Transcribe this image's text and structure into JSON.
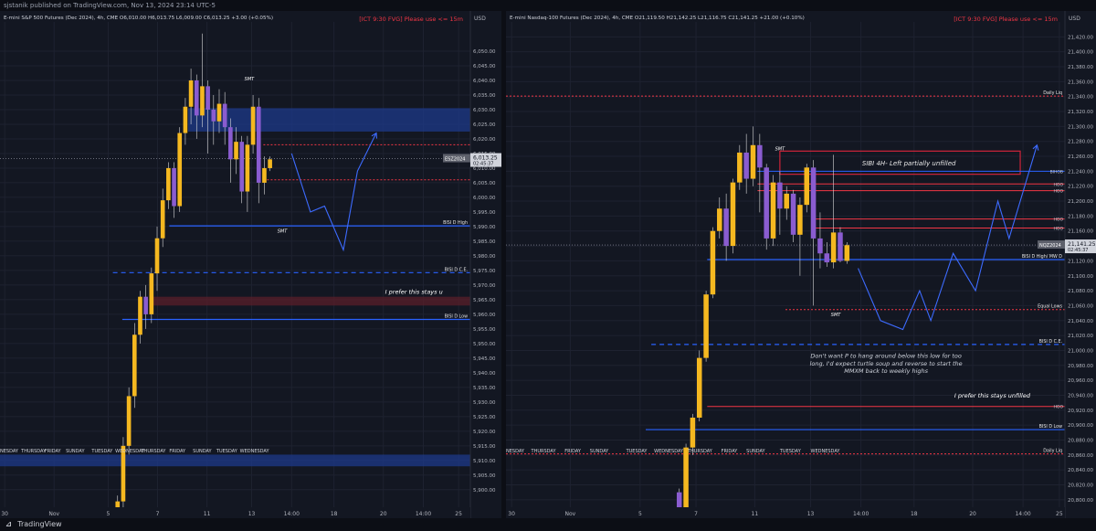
{
  "header": {
    "publisher_text": "sjstanik published on TradingView.com, Nov 13, 2024 23:14 UTC-5"
  },
  "footer": {
    "brand": "TradingView"
  },
  "colors": {
    "background": "#131722",
    "grid": "#1e2230",
    "candle_up": "#f5b820",
    "candle_down": "#8a5cd0",
    "blue_level": "#2962ff",
    "red_level": "#f23645",
    "annotation_blue": "#3d6bff",
    "fvg_blue": "#1e3a8a"
  },
  "chart_data": [
    {
      "type": "candlestick",
      "symbol_header": "E-mini S&P 500 Futures (Dec 2024), 4h, CME",
      "ohlc": {
        "o": "6,010.00",
        "h": "6,013.75",
        "l": "6,009.00",
        "c": "6,013.25",
        "chg": "+3.00 (+0.05%)"
      },
      "note_box": "[ICT 9:30 FVG] Please use <= 15m",
      "currency": "USD",
      "price_range": [
        5894,
        6060
      ],
      "y_ticks": [
        "6,050.00",
        "6,045.00",
        "6,040.00",
        "6,035.00",
        "6,030.00",
        "6,025.00",
        "6,020.00",
        "6,015.00",
        "6,010.00",
        "6,005.00",
        "6,000.00",
        "5,995.00",
        "5,990.00",
        "5,985.00",
        "5,980.00",
        "5,975.00",
        "5,970.00",
        "5,965.00",
        "5,960.00",
        "5,955.00",
        "5,950.00",
        "5,945.00",
        "5,940.00",
        "5,935.00",
        "5,930.00",
        "5,925.00",
        "5,920.00",
        "5,915.00",
        "5,910.00",
        "5,905.00",
        "5,900.00"
      ],
      "y_tick_values": [
        6050,
        6045,
        6040,
        6035,
        6030,
        6025,
        6020,
        6015,
        6010,
        6005,
        6000,
        5995,
        5990,
        5985,
        5980,
        5975,
        5970,
        5965,
        5960,
        5955,
        5950,
        5945,
        5940,
        5935,
        5930,
        5925,
        5920,
        5915,
        5910,
        5905,
        5900
      ],
      "x_ticks": [
        "30",
        "Nov",
        "5",
        "7",
        "11",
        "13",
        "14:00",
        "18",
        "20",
        "14:00",
        "25"
      ],
      "x_tick_pos": [
        0.01,
        0.115,
        0.23,
        0.335,
        0.44,
        0.535,
        0.62,
        0.71,
        0.815,
        0.9,
        0.975
      ],
      "day_labels": [
        "NESDAY",
        "THURSDAY",
        "FRIDAY",
        "SUNDAY",
        "TUESDAY",
        "WEDNESDAY",
        "THURSDAY",
        "FRIDAY",
        "SUNDAY",
        "TUESDAY",
        "WEDNESDAY"
      ],
      "day_label_pos": [
        0.0,
        0.045,
        0.095,
        0.14,
        0.195,
        0.245,
        0.3,
        0.36,
        0.41,
        0.46,
        0.51
      ],
      "current_price": {
        "symbol": "ESZ2024",
        "price": "6,013.25",
        "timer": "02:45:37",
        "value": 6013.25
      },
      "levels": [
        {
          "price": 5990.25,
          "price_label": "5,990.25",
          "text": "BISI D High",
          "style": "solid",
          "color": "#2962ff",
          "x0": 0.36,
          "x1": 1.0
        },
        {
          "price": 5974.25,
          "price_label": "5,974.25",
          "text": "BISI D C.E.",
          "style": "dashed",
          "color": "#2962ff",
          "x0": 0.24,
          "x1": 1.0
        },
        {
          "price": 5958.25,
          "price_label": "5,958.25",
          "text": "BISI D Low",
          "style": "solid",
          "color": "#2962ff",
          "x0": 0.26,
          "x1": 1.0
        }
      ],
      "zones": [
        {
          "top": 6030.5,
          "bottom": 6022.5,
          "color": "#1e3a8a",
          "x0": 0.4,
          "x1": 1.0
        },
        {
          "top": 5966,
          "bottom": 5963,
          "color": "#5a1f2a",
          "x0": 0.32,
          "x1": 1.0
        },
        {
          "top": 5912,
          "bottom": 5908,
          "color": "#1e3a8a",
          "x0": 0.0,
          "x1": 1.0
        }
      ],
      "red_lines": [
        {
          "price": 6018,
          "x0": 0.56,
          "x1": 1.0
        },
        {
          "price": 6006,
          "x0": 0.56,
          "x1": 1.0
        }
      ],
      "annotations": [
        {
          "text": "SMT",
          "x": 0.53,
          "price": 6040,
          "color": "#ffffff"
        },
        {
          "text": "SMT",
          "x": 0.6,
          "price": 5988,
          "color": "#ffffff"
        },
        {
          "text": "I prefer this stays u",
          "x": 0.88,
          "price": 5967,
          "color": "#ffffff"
        }
      ],
      "projection": [
        [
          0.62,
          6015
        ],
        [
          0.66,
          5995
        ],
        [
          0.69,
          5997
        ],
        [
          0.73,
          5982
        ],
        [
          0.76,
          6009
        ],
        [
          0.8,
          6022
        ]
      ],
      "candles": [
        [
          0.25,
          5893,
          5896,
          5890,
          5898
        ],
        [
          0.262,
          5896,
          5915,
          5894,
          5918
        ],
        [
          0.274,
          5915,
          5932,
          5912,
          5935
        ],
        [
          0.286,
          5932,
          5953,
          5928,
          5957
        ],
        [
          0.298,
          5953,
          5966,
          5950,
          5968
        ],
        [
          0.31,
          5966,
          5960,
          5955,
          5970
        ],
        [
          0.322,
          5960,
          5974,
          5957,
          5976
        ],
        [
          0.334,
          5974,
          5986,
          5968,
          5990
        ],
        [
          0.346,
          5986,
          5999,
          5983,
          6003
        ],
        [
          0.358,
          5999,
          6010,
          5996,
          6012
        ],
        [
          0.37,
          6010,
          5997,
          5993,
          6012
        ],
        [
          0.382,
          5997,
          6022,
          5995,
          6024
        ],
        [
          0.394,
          6022,
          6031,
          6018,
          6034
        ],
        [
          0.406,
          6031,
          6040,
          6025,
          6044
        ],
        [
          0.418,
          6040,
          6028,
          6020,
          6042
        ],
        [
          0.43,
          6028,
          6038,
          6024,
          6056
        ],
        [
          0.442,
          6038,
          6030,
          6015,
          6040
        ],
        [
          0.454,
          6030,
          6026,
          6018,
          6035
        ],
        [
          0.466,
          6026,
          6032,
          6022,
          6037
        ],
        [
          0.478,
          6032,
          6024,
          6018,
          6036
        ],
        [
          0.49,
          6024,
          6013,
          6005,
          6027
        ],
        [
          0.502,
          6013,
          6019,
          6008,
          6024
        ],
        [
          0.514,
          6019,
          6002,
          5998,
          6021
        ],
        [
          0.526,
          6002,
          6018,
          5995,
          6021
        ],
        [
          0.538,
          6018,
          6031,
          6015,
          6035
        ],
        [
          0.55,
          6031,
          6005,
          5998,
          6034
        ],
        [
          0.562,
          6005,
          6010,
          6001,
          6014
        ],
        [
          0.574,
          6010,
          6013,
          6009,
          6014
        ]
      ]
    },
    {
      "type": "candlestick",
      "symbol_header": "E-mini Nasdaq-100 Futures (Dec 2024), 4h, CME",
      "ohlc": {
        "o": "21,119.50",
        "h": "21,142.25",
        "l": "21,116.75",
        "c": "21,141.25",
        "chg": "+21.00 (+0.10%)"
      },
      "note_box": "[ICT 9:30 FVG] Please use <= 15m",
      "currency": "USD",
      "price_range": [
        20790,
        21440
      ],
      "y_ticks": [
        "21,420.00",
        "21,400.00",
        "21,380.00",
        "21,360.00",
        "21,340.00",
        "21,320.00",
        "21,300.00",
        "21,280.00",
        "21,260.00",
        "21,240.00",
        "21,220.00",
        "21,200.00",
        "21,180.00",
        "21,160.00",
        "21,140.00",
        "21,120.00",
        "21,100.00",
        "21,080.00",
        "21,060.00",
        "21,040.00",
        "21,020.00",
        "21,000.00",
        "20,980.00",
        "20,960.00",
        "20,940.00",
        "20,920.00",
        "20,900.00",
        "20,880.00",
        "20,860.00",
        "20,840.00",
        "20,820.00",
        "20,800.00"
      ],
      "y_tick_values": [
        21420,
        21400,
        21380,
        21360,
        21340,
        21320,
        21300,
        21280,
        21260,
        21240,
        21220,
        21200,
        21180,
        21160,
        21140,
        21120,
        21100,
        21080,
        21060,
        21040,
        21020,
        21000,
        20980,
        20960,
        20940,
        20920,
        20900,
        20880,
        20860,
        20840,
        20820,
        20800
      ],
      "x_ticks": [
        "30",
        "Nov",
        "5",
        "7",
        "11",
        "13",
        "14:00",
        "18",
        "20",
        "14:00",
        "25"
      ],
      "x_tick_pos": [
        0.01,
        0.115,
        0.24,
        0.34,
        0.445,
        0.545,
        0.635,
        0.73,
        0.835,
        0.925,
        0.99
      ],
      "day_labels": [
        "NESDAY",
        "THURSDAY",
        "FRIDAY",
        "SUNDAY",
        "TUESDAY",
        "WEDNESDAY",
        "THURSDAY",
        "FRIDAY",
        "SUNDAY",
        "TUESDAY",
        "WEDNESDAY"
      ],
      "day_label_pos": [
        0.0,
        0.045,
        0.105,
        0.15,
        0.215,
        0.265,
        0.325,
        0.385,
        0.43,
        0.49,
        0.545
      ],
      "current_price": {
        "symbol": "NQZ2024",
        "price": "21,141.25",
        "timer": "02:45:37",
        "value": 21141.25
      },
      "levels": [
        {
          "price": 21121.75,
          "price_label": "21,121.75",
          "text": "BISI D High/ MW D",
          "style": "solid",
          "color": "#2962ff",
          "x0": 0.36,
          "x1": 1.0
        },
        {
          "price": 21008,
          "price_label": "21,008.00",
          "text": "BISI D C.E.",
          "style": "dashed",
          "color": "#2962ff",
          "x0": 0.26,
          "x1": 1.0
        },
        {
          "price": 20894,
          "price_label": "20,894.00",
          "text": "BISI D Low",
          "style": "solid",
          "color": "#2962ff",
          "x0": 0.25,
          "x1": 1.0
        }
      ],
      "red_levels": [
        {
          "price": 21340.75,
          "price_label": "21,340.75",
          "text": "Daily Liq",
          "x0": 0.0,
          "x1": 1.0
        },
        {
          "price": 21054.75,
          "price_label": "21,054.75",
          "text": "Equal Lows",
          "x0": 0.5,
          "x1": 1.0
        },
        {
          "price": 20861.5,
          "price_label": "20,861.50",
          "text": "Daily Liq",
          "x0": 0.0,
          "x1": 1.0
        }
      ],
      "small_levels": [
        {
          "price": 21240,
          "text": "BIHOB",
          "color": "#2962ff",
          "x0": 0.45,
          "x1": 1.0
        },
        {
          "price": 21223,
          "text": "HOO",
          "color": "#f23645",
          "x0": 0.45,
          "x1": 1.0
        },
        {
          "price": 21214,
          "text": "HOO",
          "color": "#f23645",
          "x0": 0.45,
          "x1": 1.0
        },
        {
          "price": 21176,
          "text": "HOO",
          "color": "#f23645",
          "x0": 0.55,
          "x1": 1.0
        },
        {
          "price": 21164,
          "text": "HOO",
          "color": "#f23645",
          "x0": 0.55,
          "x1": 1.0
        },
        {
          "price": 20925,
          "text": "HOO",
          "color": "#f23645",
          "x0": 0.36,
          "x1": 1.0
        }
      ],
      "sibi_box": {
        "top": 21267,
        "bottom": 21236,
        "x0": 0.49,
        "x1": 0.92,
        "text": "SIBI 4H- Left partially unfilled"
      },
      "annotations": [
        {
          "text": "SMT",
          "x": 0.49,
          "price": 21268,
          "color": "#ffffff"
        },
        {
          "text": "SMT",
          "x": 0.59,
          "price": 21046,
          "color": "#ffffff"
        },
        {
          "text": "Don't want P to hang around below this low for too",
          "x": 0.68,
          "price": 20990,
          "color": "#cfd3dc"
        },
        {
          "text": "long, I'd expect turtle soup and reverse to start the",
          "x": 0.68,
          "price": 20980,
          "color": "#cfd3dc"
        },
        {
          "text": "MMXM back to weekly highs",
          "x": 0.68,
          "price": 20970,
          "color": "#cfd3dc"
        },
        {
          "text": "I prefer this stays unfilled",
          "x": 0.87,
          "price": 20937,
          "color": "#ffffff"
        }
      ],
      "projection": [
        [
          0.63,
          21110
        ],
        [
          0.67,
          21040
        ],
        [
          0.71,
          21028
        ],
        [
          0.74,
          21080
        ],
        [
          0.76,
          21040
        ],
        [
          0.8,
          21130
        ],
        [
          0.84,
          21080
        ],
        [
          0.88,
          21200
        ],
        [
          0.9,
          21150
        ],
        [
          0.95,
          21275
        ]
      ],
      "candles": [
        [
          0.31,
          20810,
          20785,
          20780,
          20815
        ],
        [
          0.322,
          20785,
          20870,
          20780,
          20875
        ],
        [
          0.334,
          20870,
          20910,
          20860,
          20915
        ],
        [
          0.346,
          20910,
          20990,
          20905,
          21000
        ],
        [
          0.358,
          20990,
          21075,
          20985,
          21080
        ],
        [
          0.37,
          21075,
          21160,
          21070,
          21165
        ],
        [
          0.382,
          21160,
          21190,
          21150,
          21205
        ],
        [
          0.394,
          21190,
          21140,
          21120,
          21210
        ],
        [
          0.406,
          21140,
          21225,
          21130,
          21230
        ],
        [
          0.418,
          21225,
          21265,
          21215,
          21275
        ],
        [
          0.43,
          21265,
          21230,
          21210,
          21290
        ],
        [
          0.442,
          21230,
          21275,
          21220,
          21300
        ],
        [
          0.454,
          21275,
          21245,
          21185,
          21290
        ],
        [
          0.466,
          21245,
          21150,
          21135,
          21250
        ],
        [
          0.478,
          21150,
          21225,
          21140,
          21235
        ],
        [
          0.49,
          21225,
          21190,
          21155,
          21240
        ],
        [
          0.502,
          21190,
          21210,
          21175,
          21220
        ],
        [
          0.514,
          21210,
          21155,
          21145,
          21215
        ],
        [
          0.526,
          21155,
          21195,
          21100,
          21205
        ],
        [
          0.538,
          21195,
          21245,
          21185,
          21250
        ],
        [
          0.55,
          21245,
          21150,
          21060,
          21255
        ],
        [
          0.562,
          21150,
          21130,
          21110,
          21185
        ],
        [
          0.574,
          21130,
          21118,
          21112,
          21145
        ],
        [
          0.586,
          21118,
          21158,
          21110,
          21262
        ],
        [
          0.598,
          21158,
          21120,
          21118,
          21165
        ],
        [
          0.61,
          21120,
          21141,
          21116,
          21145
        ]
      ]
    }
  ]
}
